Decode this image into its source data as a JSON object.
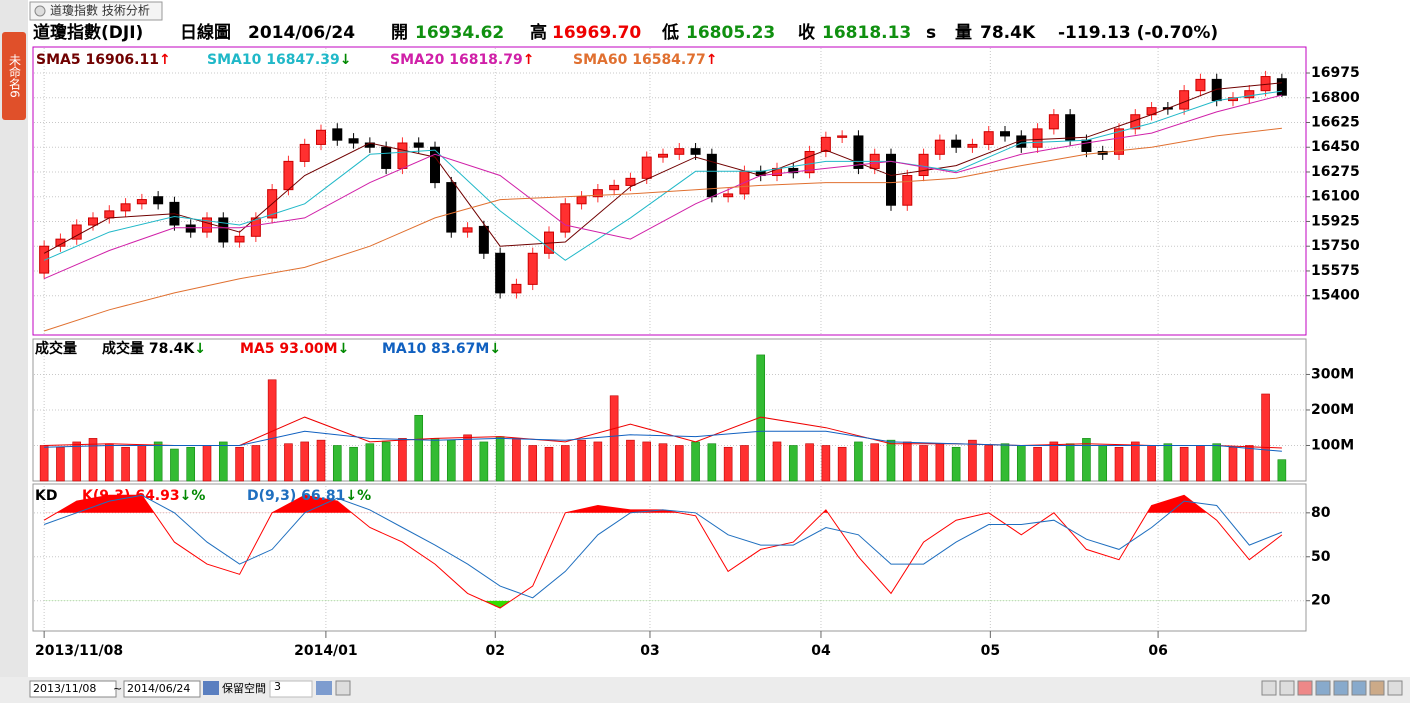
{
  "ui": {
    "tab": "未命名6",
    "window_title": "道瓊指數 技術分析",
    "info": {
      "name": "道瓊指數(DJI)",
      "period": "日線圖",
      "date": "2014/06/24",
      "open_label": "開",
      "open": "16934.62",
      "high_label": "高",
      "high": "16969.70",
      "low_label": "低",
      "low": "16805.23",
      "close_label": "收",
      "close": "16818.13",
      "close_flag": "s",
      "volume_label": "量",
      "volume": "78.4K",
      "change": "-119.13 (-0.70%)"
    },
    "toolbar": {
      "from": "2013/11/08",
      "sep": "~",
      "to": "2014/06/24",
      "reserve_label": "保留空間",
      "reserve": "3"
    }
  },
  "chart_data": [
    {
      "type": "candlestick",
      "xlim": [
        -0.5,
        76.5
      ],
      "xticks": [
        {
          "value": 0,
          "label": "2013/11/08"
        },
        {
          "value": 17.3,
          "label": "2014/01"
        },
        {
          "value": 27.7,
          "label": "02"
        },
        {
          "value": 37.2,
          "label": "03"
        },
        {
          "value": 47.7,
          "label": "04"
        },
        {
          "value": 58.1,
          "label": "05"
        },
        {
          "value": 68.4,
          "label": "06"
        }
      ],
      "open": [
        15560,
        15750,
        15800,
        15900,
        15950,
        16000,
        16050,
        16100,
        16060,
        15900,
        15850,
        15950,
        15780,
        15820,
        15950,
        16150,
        16350,
        16470,
        16580,
        16510,
        16480,
        16450,
        16300,
        16480,
        16450,
        16200,
        15850,
        15890,
        15700,
        15420,
        15480,
        15700,
        15850,
        16050,
        16100,
        16150,
        16180,
        16230,
        16380,
        16400,
        16440,
        16400,
        16100,
        16120,
        16280,
        16250,
        16300,
        16270,
        16420,
        16520,
        16530,
        16300,
        16400,
        16040,
        16250,
        16400,
        16500,
        16450,
        16470,
        16560,
        16530,
        16450,
        16580,
        16680,
        16500,
        16420,
        16400,
        16580,
        16680,
        16730,
        16720,
        16850,
        16930,
        16780,
        16800,
        16850,
        16934.62
      ],
      "high": [
        15790,
        15840,
        15940,
        15990,
        16040,
        16090,
        16120,
        16140,
        16100,
        15940,
        15990,
        15990,
        15860,
        15990,
        16190,
        16390,
        16510,
        16610,
        16620,
        16550,
        16520,
        16490,
        16520,
        16520,
        16490,
        16240,
        15920,
        15930,
        15740,
        15520,
        15740,
        15890,
        16090,
        16140,
        16190,
        16220,
        16270,
        16420,
        16440,
        16480,
        16480,
        16440,
        16160,
        16320,
        16320,
        16340,
        16340,
        16460,
        16560,
        16570,
        16570,
        16440,
        16440,
        16290,
        16440,
        16540,
        16540,
        16510,
        16600,
        16600,
        16570,
        16620,
        16720,
        16720,
        16540,
        16460,
        16620,
        16720,
        16770,
        16770,
        16890,
        16970,
        16970,
        16840,
        16890,
        16990,
        16969.7
      ],
      "low": [
        15520,
        15710,
        15760,
        15860,
        15910,
        15960,
        16010,
        16010,
        15860,
        15810,
        15810,
        15740,
        15740,
        15780,
        15910,
        16110,
        16310,
        16430,
        16460,
        16440,
        16410,
        16260,
        16260,
        16410,
        16160,
        15810,
        15810,
        15660,
        15380,
        15380,
        15440,
        15660,
        15810,
        16010,
        16060,
        16110,
        16140,
        16190,
        16340,
        16360,
        16360,
        16060,
        16060,
        16080,
        16210,
        16210,
        16230,
        16230,
        16380,
        16480,
        16260,
        16260,
        16000,
        16000,
        16210,
        16360,
        16410,
        16410,
        16430,
        16490,
        16410,
        16410,
        16540,
        16460,
        16380,
        16360,
        16360,
        16540,
        16640,
        16680,
        16680,
        16810,
        16740,
        16740,
        16760,
        16810,
        16805.23
      ],
      "close": [
        15750,
        15800,
        15900,
        15950,
        16000,
        16050,
        16080,
        16050,
        15900,
        15850,
        15950,
        15780,
        15820,
        15950,
        16150,
        16350,
        16470,
        16570,
        16500,
        16480,
        16450,
        16300,
        16480,
        16450,
        16200,
        15850,
        15880,
        15700,
        15420,
        15480,
        15700,
        15850,
        16050,
        16100,
        16150,
        16180,
        16230,
        16380,
        16400,
        16440,
        16400,
        16100,
        16120,
        16280,
        16250,
        16300,
        16270,
        16420,
        16520,
        16530,
        16300,
        16400,
        16040,
        16250,
        16400,
        16500,
        16450,
        16470,
        16560,
        16530,
        16450,
        16580,
        16680,
        16500,
        16420,
        16400,
        16580,
        16680,
        16730,
        16720,
        16850,
        16930,
        16780,
        16800,
        16850,
        16950,
        16818.13
      ],
      "up_color": "#ff3030",
      "down_color": "#000000",
      "ylim": [
        15122,
        17159
      ],
      "yticks": [
        15400,
        15575,
        15750,
        15925,
        16100,
        16275,
        16450,
        16625,
        16800,
        16975
      ],
      "grid": true,
      "line_x": [
        0,
        4,
        8,
        12,
        16,
        20,
        24,
        28,
        32,
        36,
        40,
        44,
        48,
        52,
        56,
        60,
        64,
        68,
        72,
        76
      ],
      "series": [
        {
          "name": "SMA5",
          "color": "#700000",
          "arrow": "↑",
          "values": [
            15700,
            15950,
            15980,
            15850,
            16250,
            16480,
            16380,
            15750,
            15780,
            16170,
            16380,
            16250,
            16430,
            16250,
            16320,
            16500,
            16520,
            16680,
            16860,
            16906.11
          ]
        },
        {
          "name": "SMA10",
          "color": "#20b8c8",
          "arrow": "↓",
          "values": [
            15650,
            15850,
            15960,
            15900,
            16050,
            16400,
            16430,
            16000,
            15650,
            15950,
            16280,
            16280,
            16350,
            16350,
            16280,
            16480,
            16500,
            16620,
            16780,
            16847.39
          ]
        },
        {
          "name": "SMA20",
          "color": "#d020a8",
          "arrow": "↑",
          "values": [
            15520,
            15720,
            15880,
            15880,
            15950,
            16200,
            16400,
            16250,
            15900,
            15800,
            16050,
            16250,
            16300,
            16350,
            16270,
            16400,
            16480,
            16550,
            16700,
            16818.79
          ]
        },
        {
          "name": "SMA60",
          "color": "#e07030",
          "arrow": "↑",
          "values": [
            15150,
            15300,
            15420,
            15520,
            15600,
            15750,
            15950,
            16080,
            16100,
            16120,
            16150,
            16180,
            16200,
            16200,
            16230,
            16320,
            16400,
            16450,
            16530,
            16584.77
          ]
        }
      ]
    },
    {
      "type": "bar",
      "title": "成交量",
      "current": {
        "name": "成交量",
        "value": "78.4K",
        "arrow": "↓"
      },
      "values": [
        100,
        95,
        110,
        120,
        105,
        95,
        100,
        110,
        90,
        95,
        100,
        110,
        95,
        100,
        285,
        105,
        110,
        115,
        100,
        95,
        105,
        110,
        120,
        185,
        120,
        115,
        130,
        110,
        125,
        120,
        100,
        95,
        100,
        115,
        110,
        240,
        115,
        110,
        105,
        100,
        110,
        105,
        95,
        100,
        355,
        110,
        100,
        105,
        100,
        95,
        110,
        105,
        115,
        110,
        100,
        105,
        95,
        115,
        100,
        105,
        100,
        95,
        110,
        105,
        120,
        100,
        95,
        110,
        100,
        105,
        95,
        100,
        105,
        95,
        100,
        245,
        60
      ],
      "up_color": "#ff3030",
      "down_color": "#33bb33",
      "ylim": [
        0,
        397
      ],
      "yticks": [
        {
          "value": 100,
          "label": "100M"
        },
        {
          "value": 200,
          "label": "200M"
        },
        {
          "value": 300,
          "label": "300M"
        }
      ],
      "grid": true,
      "series": [
        {
          "name": "MA5",
          "color": "#ee0000",
          "legend_value": "93.00M",
          "arrow": "↓",
          "values": [
            100,
            105,
            100,
            100,
            180,
            110,
            120,
            125,
            110,
            160,
            110,
            180,
            150,
            105,
            105,
            100,
            105,
            100,
            100,
            93.0
          ]
        },
        {
          "name": "MA10",
          "color": "#1060c0",
          "legend_value": "83.67M",
          "arrow": "↓",
          "values": [
            95,
            100,
            100,
            100,
            140,
            120,
            115,
            120,
            115,
            130,
            125,
            140,
            140,
            110,
            105,
            100,
            100,
            100,
            100,
            83.67
          ]
        }
      ]
    },
    {
      "type": "line",
      "title": "KD",
      "kd_x": [
        0,
        2,
        4,
        6,
        8,
        10,
        12,
        14,
        16,
        18,
        20,
        22,
        24,
        26,
        28,
        30,
        32,
        34,
        36,
        38,
        40,
        42,
        44,
        46,
        48,
        50,
        52,
        54,
        56,
        58,
        60,
        62,
        64,
        66,
        68,
        70,
        72,
        74,
        76
      ],
      "ylim": [
        0,
        99
      ],
      "yticks": [
        20,
        50,
        80
      ],
      "grid": true,
      "overbought": 80,
      "oversold": 20,
      "overbought_color": "#ff0000",
      "oversold_color": "#33dd00",
      "series": [
        {
          "name": "K(9,3)",
          "color": "#ff0000",
          "arrow": "↓%",
          "values": [
            75,
            88,
            92,
            92,
            60,
            45,
            38,
            80,
            92,
            88,
            70,
            60,
            45,
            25,
            15,
            30,
            80,
            85,
            82,
            82,
            78,
            40,
            55,
            60,
            82,
            50,
            25,
            60,
            75,
            80,
            65,
            80,
            55,
            48,
            85,
            92,
            75,
            48,
            64.93
          ]
        },
        {
          "name": "D(9,3)",
          "color": "#1f6fbf",
          "arrow": "↓%",
          "values": [
            72,
            80,
            88,
            92,
            80,
            60,
            45,
            55,
            80,
            90,
            82,
            70,
            58,
            45,
            30,
            22,
            40,
            65,
            80,
            82,
            80,
            65,
            58,
            58,
            70,
            65,
            45,
            45,
            60,
            72,
            72,
            75,
            62,
            55,
            70,
            88,
            85,
            58,
            66.81
          ]
        }
      ]
    }
  ]
}
